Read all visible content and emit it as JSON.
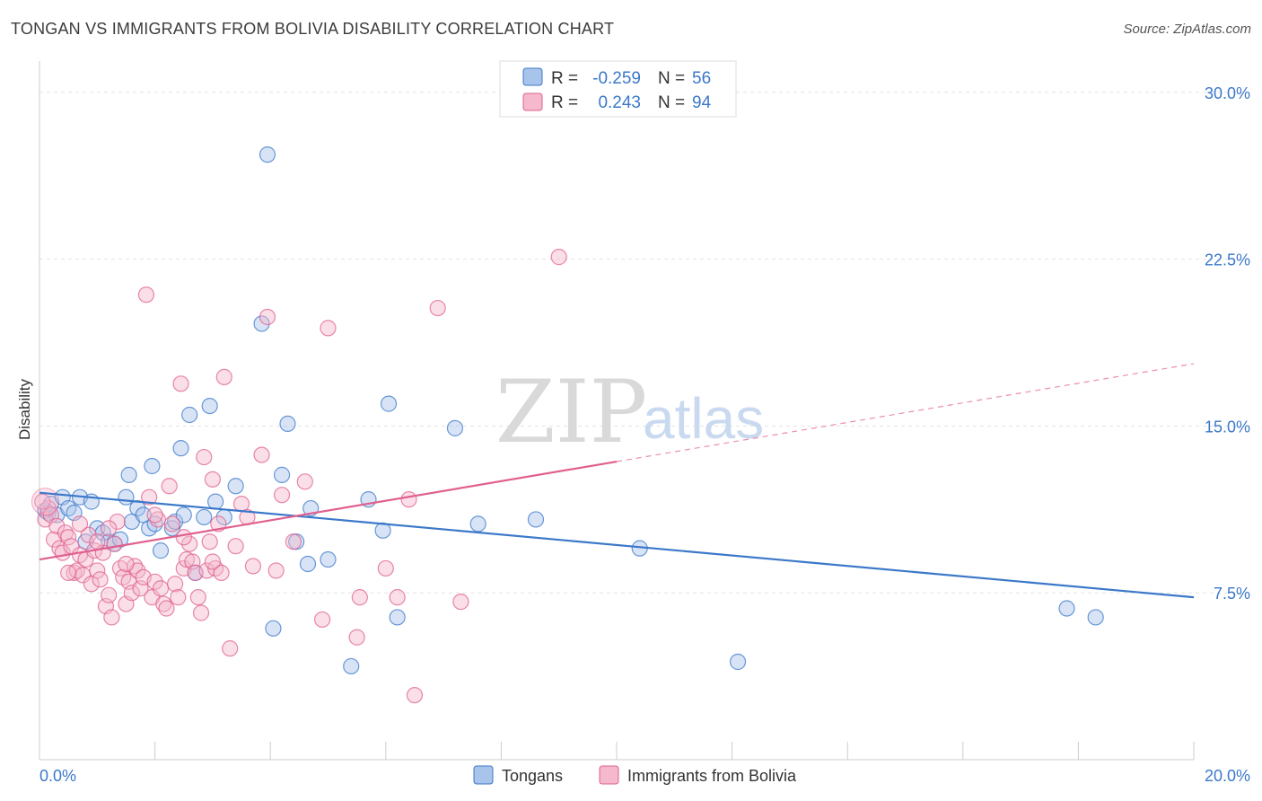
{
  "title": "TONGAN VS IMMIGRANTS FROM BOLIVIA DISABILITY CORRELATION CHART",
  "source": "Source: ZipAtlas.com",
  "colors": {
    "blue": "#3b78c9",
    "blue_fill": "#a8c4ea",
    "pink": "#e0608f",
    "pink_fill": "#f5b8cc"
  },
  "chart_data": {
    "type": "scatter",
    "xlabel": "",
    "ylabel": "Disability",
    "xlim": [
      0,
      20
    ],
    "ylim": [
      0,
      31
    ],
    "x_tick_labels": [
      "0.0%",
      "20.0%"
    ],
    "y_ticks": [
      7.5,
      15.0,
      22.5,
      30.0
    ],
    "y_tick_labels": [
      "7.5%",
      "15.0%",
      "22.5%",
      "30.0%"
    ],
    "legend": {
      "rows": [
        {
          "r_label": "R =",
          "r_value": "-0.259",
          "n_label": "N =",
          "n_value": "56"
        },
        {
          "r_label": "R =",
          "r_value": "0.243",
          "n_label": "N =",
          "n_value": "94"
        }
      ]
    },
    "watermark": {
      "zip": "ZIP",
      "atlas": "atlas"
    },
    "series": [
      {
        "name": "Tongans",
        "color": "#3b78c9",
        "trend": {
          "x": [
            0,
            20
          ],
          "y": [
            12.0,
            7.3
          ],
          "dashed_from": null
        },
        "points": [
          [
            0.1,
            11.2
          ],
          [
            0.15,
            11.1
          ],
          [
            0.2,
            11.5
          ],
          [
            0.3,
            11.0
          ],
          [
            0.4,
            11.8
          ],
          [
            0.5,
            11.3
          ],
          [
            0.6,
            11.1
          ],
          [
            0.7,
            11.8
          ],
          [
            0.8,
            9.8
          ],
          [
            0.9,
            11.6
          ],
          [
            1.0,
            10.4
          ],
          [
            1.1,
            10.2
          ],
          [
            1.2,
            9.8
          ],
          [
            1.3,
            9.7
          ],
          [
            1.4,
            9.9
          ],
          [
            1.5,
            11.8
          ],
          [
            1.55,
            12.8
          ],
          [
            1.6,
            10.7
          ],
          [
            1.7,
            11.3
          ],
          [
            1.8,
            11.0
          ],
          [
            1.9,
            10.4
          ],
          [
            1.95,
            13.2
          ],
          [
            2.0,
            10.6
          ],
          [
            2.1,
            9.4
          ],
          [
            2.3,
            10.4
          ],
          [
            2.35,
            10.7
          ],
          [
            2.45,
            14.0
          ],
          [
            2.5,
            11.0
          ],
          [
            2.6,
            15.5
          ],
          [
            2.7,
            8.4
          ],
          [
            2.85,
            10.9
          ],
          [
            2.95,
            15.9
          ],
          [
            3.05,
            11.6
          ],
          [
            3.2,
            10.9
          ],
          [
            3.4,
            12.3
          ],
          [
            3.85,
            19.6
          ],
          [
            3.95,
            27.2
          ],
          [
            4.05,
            5.9
          ],
          [
            4.2,
            12.8
          ],
          [
            4.3,
            15.1
          ],
          [
            4.45,
            9.8
          ],
          [
            4.65,
            8.8
          ],
          [
            4.7,
            11.3
          ],
          [
            5.0,
            9.0
          ],
          [
            5.4,
            4.2
          ],
          [
            5.7,
            11.7
          ],
          [
            5.95,
            10.3
          ],
          [
            6.05,
            16.0
          ],
          [
            6.2,
            6.4
          ],
          [
            7.2,
            14.9
          ],
          [
            7.6,
            10.6
          ],
          [
            8.6,
            10.8
          ],
          [
            10.4,
            9.5
          ],
          [
            12.1,
            4.4
          ],
          [
            17.8,
            6.8
          ],
          [
            18.3,
            6.4
          ]
        ]
      },
      {
        "name": "Immigrants from Bolivia",
        "color": "#e0608f",
        "trend": {
          "x": [
            0,
            20
          ],
          "y": [
            9.0,
            17.8
          ],
          "dashed_from": 10.0
        },
        "points": [
          [
            0.1,
            10.8
          ],
          [
            0.15,
            11.3
          ],
          [
            0.2,
            11.0
          ],
          [
            0.25,
            9.9
          ],
          [
            0.3,
            10.5
          ],
          [
            0.35,
            9.5
          ],
          [
            0.4,
            9.3
          ],
          [
            0.45,
            10.2
          ],
          [
            0.5,
            10.0
          ],
          [
            0.55,
            9.6
          ],
          [
            0.6,
            8.4
          ],
          [
            0.65,
            8.5
          ],
          [
            0.7,
            9.2
          ],
          [
            0.75,
            8.3
          ],
          [
            0.8,
            9.0
          ],
          [
            0.85,
            10.1
          ],
          [
            0.9,
            7.9
          ],
          [
            0.95,
            9.4
          ],
          [
            1.0,
            8.5
          ],
          [
            1.05,
            8.1
          ],
          [
            1.1,
            9.3
          ],
          [
            1.15,
            6.9
          ],
          [
            1.2,
            7.4
          ],
          [
            1.25,
            6.4
          ],
          [
            1.3,
            9.7
          ],
          [
            1.35,
            10.7
          ],
          [
            1.4,
            8.6
          ],
          [
            1.45,
            8.2
          ],
          [
            1.5,
            7.0
          ],
          [
            1.55,
            8.0
          ],
          [
            1.6,
            7.5
          ],
          [
            1.65,
            8.7
          ],
          [
            1.7,
            8.5
          ],
          [
            1.75,
            7.7
          ],
          [
            1.8,
            8.2
          ],
          [
            1.85,
            20.9
          ],
          [
            1.9,
            11.8
          ],
          [
            1.95,
            7.3
          ],
          [
            2.0,
            8.0
          ],
          [
            2.05,
            10.8
          ],
          [
            2.1,
            7.7
          ],
          [
            2.15,
            7.0
          ],
          [
            2.2,
            6.8
          ],
          [
            2.25,
            12.3
          ],
          [
            2.3,
            10.6
          ],
          [
            2.35,
            7.9
          ],
          [
            2.4,
            7.3
          ],
          [
            2.45,
            16.9
          ],
          [
            2.5,
            8.6
          ],
          [
            2.55,
            9.0
          ],
          [
            2.6,
            9.7
          ],
          [
            2.65,
            8.9
          ],
          [
            2.7,
            8.4
          ],
          [
            2.75,
            7.3
          ],
          [
            2.8,
            6.6
          ],
          [
            2.85,
            13.6
          ],
          [
            2.9,
            8.5
          ],
          [
            2.95,
            9.8
          ],
          [
            3.0,
            12.6
          ],
          [
            3.05,
            8.6
          ],
          [
            3.1,
            10.6
          ],
          [
            3.15,
            8.4
          ],
          [
            3.2,
            17.2
          ],
          [
            3.3,
            5.0
          ],
          [
            3.4,
            9.6
          ],
          [
            3.5,
            11.5
          ],
          [
            3.6,
            10.9
          ],
          [
            3.7,
            8.7
          ],
          [
            3.85,
            13.7
          ],
          [
            3.95,
            19.9
          ],
          [
            4.1,
            8.5
          ],
          [
            4.2,
            11.9
          ],
          [
            4.4,
            9.8
          ],
          [
            4.6,
            12.5
          ],
          [
            4.9,
            6.3
          ],
          [
            5.0,
            19.4
          ],
          [
            5.5,
            5.5
          ],
          [
            5.55,
            7.3
          ],
          [
            6.0,
            8.6
          ],
          [
            6.2,
            7.3
          ],
          [
            6.4,
            11.7
          ],
          [
            6.5,
            2.9
          ],
          [
            6.9,
            20.3
          ],
          [
            7.3,
            7.1
          ],
          [
            9.0,
            22.6
          ],
          [
            0.05,
            11.6
          ],
          [
            0.5,
            8.4
          ],
          [
            1.0,
            9.8
          ],
          [
            1.5,
            8.8
          ],
          [
            2.0,
            11.0
          ],
          [
            2.5,
            10.0
          ],
          [
            3.0,
            8.9
          ],
          [
            1.2,
            10.4
          ],
          [
            0.7,
            10.6
          ]
        ]
      }
    ]
  }
}
